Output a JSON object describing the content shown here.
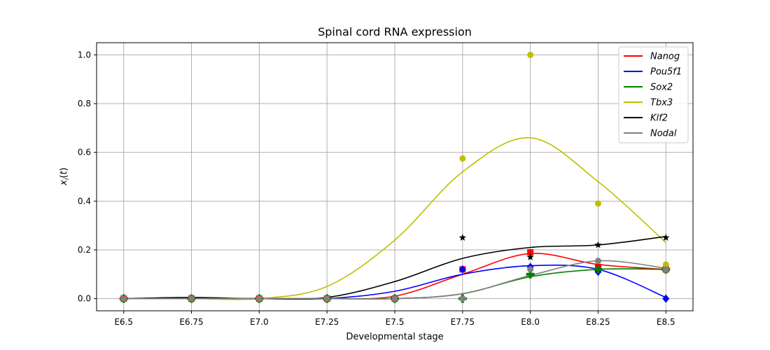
{
  "chart_data": {
    "type": "line",
    "title": "Spinal cord RNA expression",
    "xlabel": "Developmental stage",
    "ylabel": "x_i(t)",
    "categories": [
      "E6.5",
      "E6.75",
      "E7.0",
      "E7.25",
      "E7.5",
      "E7.75",
      "E8.0",
      "E8.25",
      "E8.5"
    ],
    "x": [
      6.5,
      6.75,
      7.0,
      7.25,
      7.5,
      7.75,
      8.0,
      8.25,
      8.5
    ],
    "xlim": [
      6.4,
      8.6
    ],
    "ylim": [
      -0.05,
      1.05
    ],
    "yticks": [
      "0.0",
      "0.2",
      "0.4",
      "0.6",
      "0.8",
      "1.0"
    ],
    "grid": true,
    "legend_position": "top-right",
    "series": [
      {
        "name": "Nanog",
        "color": "#ff0000",
        "marker": "square",
        "points": [
          0,
          0,
          0,
          0,
          0,
          0.12,
          0.19,
          0.13,
          0.12
        ],
        "curve": [
          0,
          0,
          0,
          0,
          0.01,
          0.1,
          0.185,
          0.14,
          0.12
        ]
      },
      {
        "name": "Pou5f1",
        "color": "#0000ff",
        "marker": "diamond",
        "points": [
          0,
          0,
          0,
          0,
          0,
          0.12,
          0.13,
          0.11,
          0.0
        ],
        "curve": [
          0,
          0,
          0,
          0,
          0.03,
          0.1,
          0.135,
          0.12,
          0.005
        ]
      },
      {
        "name": "Sox2",
        "color": "#008000",
        "marker": "plus",
        "points": [
          0,
          0,
          0,
          0,
          0,
          0,
          0.1,
          0.12,
          0.12
        ],
        "curve": [
          0,
          0,
          0,
          0,
          0,
          0.02,
          0.09,
          0.12,
          0.12
        ]
      },
      {
        "name": "Tbx3",
        "color": "#bfbf00",
        "marker": "circle",
        "points": [
          0,
          0,
          0,
          0,
          0,
          0.575,
          1.0,
          0.39,
          0.14
        ],
        "curve": [
          0,
          0,
          0,
          0.05,
          0.24,
          0.52,
          0.66,
          0.48,
          0.23
        ]
      },
      {
        "name": "Klf2",
        "color": "#000000",
        "marker": "star",
        "points": [
          0,
          0,
          0,
          0,
          0,
          0.25,
          0.17,
          0.22,
          0.25
        ],
        "curve": [
          0,
          0.005,
          0,
          0.005,
          0.07,
          0.165,
          0.21,
          0.22,
          0.255
        ]
      },
      {
        "name": "Nodal",
        "color": "#808080",
        "marker": "circle",
        "points": [
          0,
          0,
          0,
          0,
          0,
          0,
          0.12,
          0.155,
          0.12
        ],
        "curve": [
          0,
          0,
          0,
          0,
          0,
          0.02,
          0.095,
          0.155,
          0.125
        ]
      }
    ]
  }
}
